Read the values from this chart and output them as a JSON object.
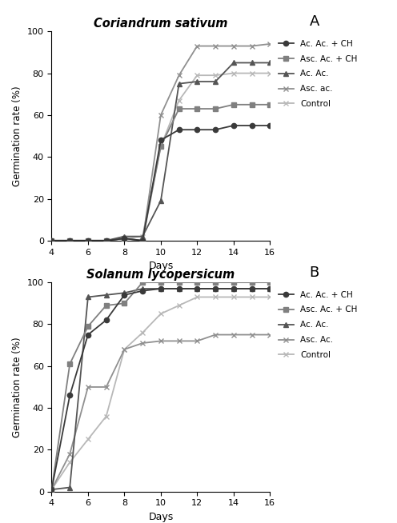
{
  "days": [
    4,
    5,
    6,
    7,
    8,
    9,
    10,
    11,
    12,
    13,
    14,
    15,
    16
  ],
  "A_title": "Coriandrum sativum",
  "A_panel": "A",
  "A_ac_ac_ch": [
    0,
    0,
    0,
    0,
    1,
    0,
    48,
    53,
    53,
    53,
    55,
    55,
    55
  ],
  "A_asc_ac_ch": [
    0,
    0,
    0,
    0,
    1,
    0,
    45,
    63,
    63,
    63,
    65,
    65,
    65
  ],
  "A_ac_ac": [
    0,
    0,
    0,
    0,
    2,
    2,
    19,
    75,
    76,
    76,
    85,
    85,
    85
  ],
  "A_asc_ac": [
    0,
    0,
    0,
    0,
    1,
    0,
    60,
    79,
    93,
    93,
    93,
    93,
    94
  ],
  "A_control": [
    0,
    0,
    0,
    0,
    1,
    2,
    45,
    67,
    79,
    79,
    80,
    80,
    80
  ],
  "B_title": "Solanum lycopersicum",
  "B_panel": "B",
  "B_ac_ac_ch": [
    1,
    46,
    75,
    82,
    94,
    96,
    97,
    97,
    97,
    97,
    97,
    97,
    97
  ],
  "B_asc_ac_ch": [
    1,
    61,
    79,
    89,
    90,
    100,
    100,
    100,
    100,
    100,
    100,
    100,
    100
  ],
  "B_ac_ac": [
    1,
    2,
    93,
    94,
    95,
    97,
    97,
    97,
    97,
    97,
    97,
    97,
    97
  ],
  "B_asc_ac": [
    1,
    18,
    50,
    50,
    68,
    71,
    72,
    72,
    72,
    75,
    75,
    75,
    75
  ],
  "B_control": [
    1,
    14,
    25,
    36,
    68,
    76,
    85,
    89,
    93,
    93,
    93,
    93,
    93
  ],
  "color_ac_ac_ch": "#3a3a3a",
  "color_asc_ac_ch": "#808080",
  "color_ac_ac": "#555555",
  "color_asc_ac": "#909090",
  "color_control": "#b8b8b8",
  "xlabel": "Days",
  "ylabel": "Germination rate (%)",
  "ylim": [
    0,
    100
  ],
  "xlim": [
    4,
    16
  ],
  "xticks": [
    4,
    6,
    8,
    10,
    12,
    14,
    16
  ],
  "yticks": [
    0,
    20,
    40,
    60,
    80,
    100
  ],
  "legend_labels_A": [
    "Ac. Ac. + CH",
    "Asc. Ac. + CH",
    "Ac. Ac.",
    "Asc. ac.",
    "Control"
  ],
  "legend_labels_B": [
    "Ac. Ac. + CH",
    "Asc. Ac. + CH",
    "Ac. Ac.",
    "Asc. Ac.",
    "Control"
  ]
}
